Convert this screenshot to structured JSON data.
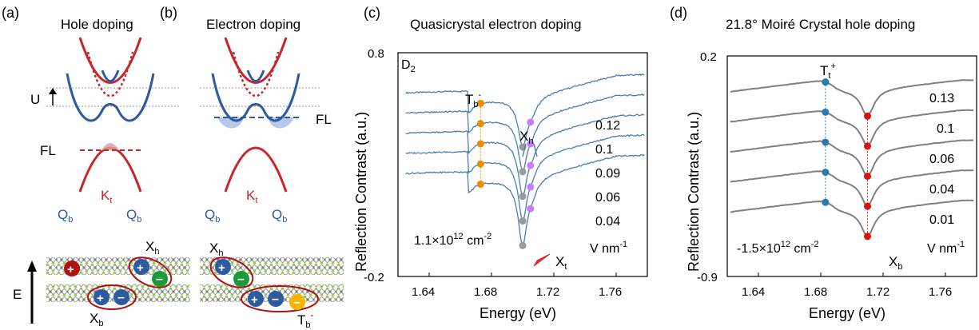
{
  "panels": {
    "a": {
      "tag": "(a)",
      "title": "Hole doping",
      "labels": {
        "U": "U",
        "FL": "FL",
        "Kt": "K",
        "Kt_sub": "t",
        "Qb": "Q",
        "Qb_sub": "b",
        "Xh": "X",
        "Xh_sub": "h",
        "Xb": "X",
        "Xb_sub": "b",
        "E": "E"
      }
    },
    "b": {
      "tag": "(b)",
      "title": "Electron doping",
      "labels": {
        "FL": "FL",
        "Kt": "K",
        "Kt_sub": "t",
        "Qb": "Q",
        "Qb_sub": "b",
        "Xh": "X",
        "Xh_sub": "h",
        "Tb": "T",
        "Tb_sub": "b",
        "Tb_sup": "-"
      }
    },
    "c": {
      "tag": "(c)",
      "title": "Quasicrystal electron doping",
      "corner": "D",
      "corner_sub": "2",
      "xlabel": "Energy (eV)",
      "ylabel": "Reflection Contrast (a.u.)",
      "yticks": [
        "0.8",
        "-0.2"
      ],
      "xticks": [
        "1.64",
        "1.68",
        "1.72",
        "1.76"
      ],
      "density": "1.1×10",
      "density_exp": "12",
      "density_unit": " cm",
      "density_unit_exp": "-2",
      "unit": "V nm",
      "unit_exp": "-1",
      "series_labels": [
        "0.12",
        "0.1",
        "0.09",
        "0.06",
        "0.04"
      ],
      "annot": {
        "Tb": "T",
        "Tb_sub": "b",
        "Tb_sup": "-",
        "Xh": "X",
        "Xh_sub": "h",
        "Xt": "X",
        "Xt_sub": "t"
      }
    },
    "d": {
      "tag": "(d)",
      "title": "21.8° Moiré Crystal hole doping",
      "xlabel": "Energy (eV)",
      "ylabel": "Reflection Contrast (a.u.)",
      "yticks": [
        "0.2",
        "-0.9"
      ],
      "xticks": [
        "1.64",
        "1.68",
        "1.72",
        "1.76"
      ],
      "density": "-1.5×10",
      "density_exp": "12",
      "density_unit": " cm",
      "density_unit_exp": "-2",
      "unit": "V nm",
      "unit_exp": "-1",
      "series_labels": [
        "0.13",
        "0.1",
        "0.06",
        "0.04",
        "0.01"
      ],
      "annot": {
        "Tt": "T",
        "Tt_sub": "t",
        "Tt_sup": "+",
        "Xb": "X",
        "Xb_sub": "b"
      }
    }
  },
  "chart_data": [
    {
      "type": "line",
      "panel": "c",
      "title": "Quasicrystal electron doping",
      "xlabel": "Energy (eV)",
      "ylabel": "Reflection Contrast (a.u.)",
      "xlim": [
        1.62,
        1.78
      ],
      "ylim": [
        -0.2,
        0.8
      ],
      "xticks": [
        1.64,
        1.68,
        1.72,
        1.76
      ],
      "color": "#4a7fb5",
      "series": [
        {
          "name": "0.12",
          "offset": 0.62
        },
        {
          "name": "0.1",
          "offset": 0.53
        },
        {
          "name": "0.09",
          "offset": 0.44
        },
        {
          "name": "0.06",
          "offset": 0.35
        },
        {
          "name": "0.04",
          "offset": 0.26
        }
      ],
      "markers": {
        "Tb_minus_x": 1.673,
        "Tb_color": "#f08c00",
        "Xh_x": 1.705,
        "Xh_color": "#c77dff",
        "Xt_x": 1.7,
        "Xt_color": "#9a9a9a"
      }
    },
    {
      "type": "line",
      "panel": "d",
      "title": "21.8° Moiré Crystal hole doping",
      "xlabel": "Energy (eV)",
      "ylabel": "Reflection Contrast (a.u.)",
      "xlim": [
        1.62,
        1.78
      ],
      "ylim": [
        -0.9,
        0.2
      ],
      "xticks": [
        1.64,
        1.68,
        1.72,
        1.76
      ],
      "color": "#808080",
      "series": [
        {
          "name": "0.13",
          "offset": 0.02
        },
        {
          "name": "0.1",
          "offset": -0.13
        },
        {
          "name": "0.06",
          "offset": -0.28
        },
        {
          "name": "0.04",
          "offset": -0.43
        },
        {
          "name": "0.01",
          "offset": -0.58
        }
      ],
      "markers": {
        "Tt_plus_x": 1.683,
        "Tt_color": "#2a7ab0",
        "Xb_x": 1.71,
        "Xb_color": "#e01010"
      }
    }
  ]
}
